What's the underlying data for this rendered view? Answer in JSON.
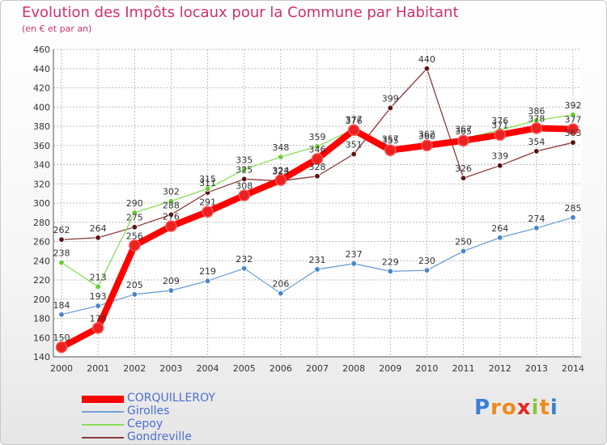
{
  "chart_data": {
    "type": "line",
    "title": "Evolution des Impôts locaux pour la Commune par Habitant",
    "subtitle": "(en € et par an)",
    "xlabel": "",
    "ylabel": "",
    "x": [
      "2000",
      "2001",
      "2002",
      "2003",
      "2004",
      "2005",
      "2006",
      "2007",
      "2008",
      "2009",
      "2010",
      "2011",
      "2012",
      "2013",
      "2014"
    ],
    "ylim": [
      140,
      460
    ],
    "ytick_step": 20,
    "grid": true,
    "legend_position": "bottom-left",
    "series": [
      {
        "name": "CORQUILLEROY",
        "color": "#ff0000",
        "marker": "#ee2020",
        "values": [
          150,
          170,
          256,
          276,
          291,
          308,
          324,
          346,
          376,
          355,
          360,
          365,
          371,
          378,
          377
        ],
        "labels": [
          "150",
          "170",
          "256",
          "276",
          "291",
          "308",
          "324",
          "346",
          "376",
          "355",
          "360",
          "365",
          "371",
          "378",
          "377"
        ]
      },
      {
        "name": "Girolles",
        "color": "#6fa0d8",
        "marker": "#4a86c8",
        "values": [
          184,
          193,
          205,
          209,
          219,
          232,
          206,
          231,
          237,
          229,
          230,
          250,
          264,
          274,
          285
        ],
        "labels": [
          "184",
          "193",
          "205",
          "209",
          "219",
          "232",
          "206",
          "231",
          "237",
          "229",
          "230",
          "250",
          "264",
          "274",
          "285"
        ]
      },
      {
        "name": "Cepoy",
        "color": "#88dd55",
        "marker": "#66cc33",
        "values": [
          238,
          213,
          290,
          302,
          315,
          335,
          348,
          359,
          377,
          357,
          362,
          367,
          376,
          386,
          392
        ],
        "labels": [
          "238",
          "213",
          "290",
          "302",
          "315",
          "335",
          "348",
          "359",
          "377",
          "357",
          "362",
          "367",
          "376",
          "386",
          "392"
        ]
      },
      {
        "name": "Gondreville",
        "color": "#8b3a3a",
        "marker": "#5a1414",
        "values": [
          262,
          264,
          275,
          288,
          311,
          325,
          323,
          328,
          351,
          399,
          440,
          326,
          339,
          354,
          363
        ],
        "labels": [
          "262",
          "264",
          "275",
          "288",
          "311",
          "325",
          "323",
          "328",
          "351",
          "399",
          "440",
          "326",
          "339",
          "354",
          "363"
        ]
      }
    ]
  },
  "logo": {
    "letters": [
      "P",
      "r",
      "o",
      "x",
      "i",
      "t",
      "i"
    ],
    "colors": [
      "#3a7fd6",
      "#f08a1c",
      "#f08a1c",
      "#e8281f",
      "#8bc53f",
      "#f08a1c",
      "#3a7fd6"
    ]
  }
}
